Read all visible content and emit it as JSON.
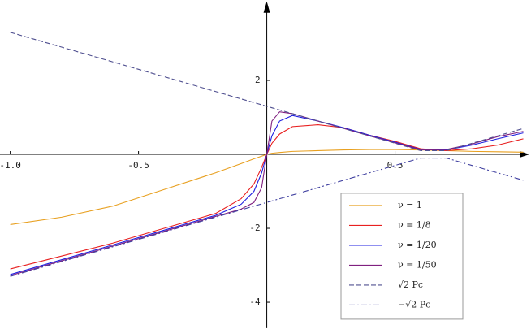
{
  "chart_data": {
    "type": "line",
    "x": [
      -1,
      -0.8,
      -0.6,
      -0.4,
      -0.2,
      -0.1,
      -0.05,
      -0.02,
      0,
      0.02,
      0.05,
      0.1,
      0.2,
      0.3,
      0.4,
      0.5,
      0.6,
      0.7,
      0.8,
      0.9,
      1.0
    ],
    "series": [
      {
        "name": "ν = 1",
        "color": "#e8a020",
        "dash": "solid",
        "values": [
          -1.9,
          -1.7,
          -1.4,
          -0.95,
          -0.5,
          -0.25,
          -0.12,
          -0.05,
          0,
          0.03,
          0.05,
          0.08,
          0.1,
          0.12,
          0.13,
          0.13,
          0.12,
          0.1,
          0.08,
          0.07,
          0.06
        ]
      },
      {
        "name": "ν = 1/8",
        "color": "#e82020",
        "dash": "solid",
        "values": [
          -3.1,
          -2.75,
          -2.4,
          -2.0,
          -1.6,
          -1.2,
          -0.8,
          -0.35,
          0,
          0.3,
          0.55,
          0.75,
          0.8,
          0.72,
          0.52,
          0.35,
          0.15,
          0.1,
          0.15,
          0.25,
          0.42
        ]
      },
      {
        "name": "ν = 1/20",
        "color": "#2020e0",
        "dash": "solid",
        "values": [
          -3.25,
          -2.85,
          -2.45,
          -2.05,
          -1.65,
          -1.35,
          -1.0,
          -0.5,
          0,
          0.5,
          0.9,
          1.05,
          0.9,
          0.72,
          0.52,
          0.33,
          0.13,
          0.12,
          0.25,
          0.42,
          0.58
        ]
      },
      {
        "name": "ν = 1/50",
        "color": "#802080",
        "dash": "solid",
        "values": [
          -3.28,
          -2.88,
          -2.48,
          -2.08,
          -1.68,
          -1.48,
          -1.3,
          -0.9,
          0,
          0.9,
          1.15,
          1.1,
          0.9,
          0.7,
          0.5,
          0.31,
          0.12,
          0.13,
          0.28,
          0.48,
          0.62
        ]
      },
      {
        "name": "√2 Pc",
        "color": "#505090",
        "dash": "dashed",
        "values": [
          3.3,
          2.9,
          2.5,
          2.1,
          1.7,
          1.5,
          1.4,
          1.34,
          1.3,
          1.26,
          1.2,
          1.1,
          0.9,
          0.7,
          0.5,
          0.3,
          0.1,
          0.1,
          0.3,
          0.5,
          0.7
        ]
      },
      {
        "name": "−√2 Pc",
        "color": "#4040a0",
        "dash": "dashdot",
        "values": [
          -3.3,
          -2.9,
          -2.5,
          -2.1,
          -1.7,
          -1.5,
          -1.4,
          -1.34,
          -1.3,
          -1.26,
          -1.2,
          -1.1,
          -0.9,
          -0.7,
          -0.5,
          -0.3,
          -0.1,
          -0.1,
          -0.3,
          -0.5,
          -0.7
        ]
      }
    ],
    "xlim": [
      -1.04,
      1.03
    ],
    "ylim": [
      -4.7,
      4.05
    ],
    "xticks": [
      {
        "value": -1.0,
        "label": "-1.0"
      },
      -0.5,
      0.5
    ],
    "yticks": [
      2,
      -2,
      -4
    ],
    "legend": "lower right"
  }
}
